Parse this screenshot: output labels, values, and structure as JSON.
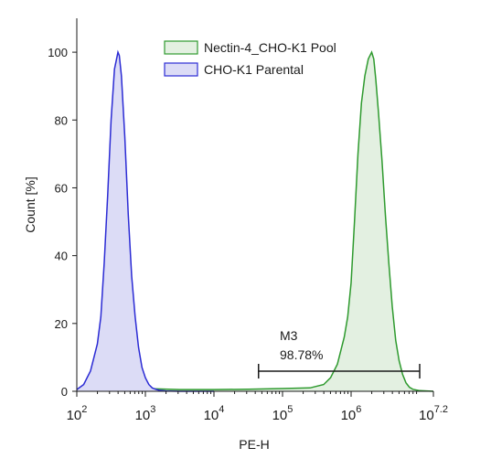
{
  "chart_data": {
    "type": "area",
    "xlabel": "PE-H",
    "ylabel": "Count [%]",
    "x_scale": "log10",
    "xlim_log10": [
      2,
      7.2
    ],
    "ylim": [
      0,
      110
    ],
    "y_ticks": [
      0,
      20,
      40,
      60,
      80,
      100
    ],
    "y_tick_labels": [
      "0",
      "20",
      "40",
      "60",
      "80",
      "100"
    ],
    "x_ticks_log10": [
      2,
      3,
      4,
      5,
      6,
      7.2
    ],
    "x_tick_labels": [
      {
        "base": "10",
        "exp": "2"
      },
      {
        "base": "10",
        "exp": "3"
      },
      {
        "base": "10",
        "exp": "4"
      },
      {
        "base": "10",
        "exp": "5"
      },
      {
        "base": "10",
        "exp": "6"
      },
      {
        "base": "10",
        "exp": "7.2"
      }
    ],
    "legend_position": "top-center",
    "series": [
      {
        "name": "Nectin-4_CHO-K1 Pool",
        "color": "#2e9a2e",
        "fill": "#e3f0e1",
        "x_log10": [
          2.0,
          2.5,
          3.0,
          3.5,
          4.0,
          4.5,
          5.0,
          5.4,
          5.6,
          5.7,
          5.8,
          5.9,
          5.95,
          6.0,
          6.05,
          6.1,
          6.15,
          6.2,
          6.25,
          6.3,
          6.33,
          6.36,
          6.4,
          6.45,
          6.5,
          6.55,
          6.6,
          6.65,
          6.7,
          6.75,
          6.8,
          6.85,
          6.9,
          7.0,
          7.2
        ],
        "values": [
          0.5,
          0.6,
          0.8,
          0.5,
          0.5,
          0.6,
          0.8,
          1.0,
          2.0,
          4.0,
          8.0,
          16.0,
          22.0,
          32.0,
          50.0,
          70.0,
          85.0,
          93.0,
          98.0,
          100.0,
          98.0,
          92.0,
          82.0,
          68.0,
          52.0,
          38.0,
          25.0,
          15.0,
          9.0,
          5.0,
          2.5,
          1.2,
          0.6,
          0.2,
          0.0
        ]
      },
      {
        "name": "CHO-K1 Parental",
        "color": "#2b2bd4",
        "fill": "#dcdcf6",
        "x_log10": [
          2.0,
          2.1,
          2.2,
          2.3,
          2.35,
          2.4,
          2.45,
          2.5,
          2.55,
          2.6,
          2.62,
          2.65,
          2.7,
          2.75,
          2.8,
          2.85,
          2.9,
          2.95,
          3.0,
          3.05,
          3.1,
          3.15,
          3.2,
          3.3,
          3.5,
          4.0
        ],
        "values": [
          0.5,
          2.0,
          6.0,
          14.0,
          22.0,
          38.0,
          58.0,
          80.0,
          95.0,
          100.0,
          99.0,
          93.0,
          75.0,
          52.0,
          34.0,
          22.0,
          13.0,
          7.0,
          4.0,
          2.0,
          1.0,
          0.6,
          0.3,
          0.1,
          0.0,
          0.0
        ]
      }
    ],
    "marker": {
      "name": "M3",
      "label": "98.78%",
      "range_log10": [
        4.65,
        7.0
      ],
      "y": 7
    }
  }
}
